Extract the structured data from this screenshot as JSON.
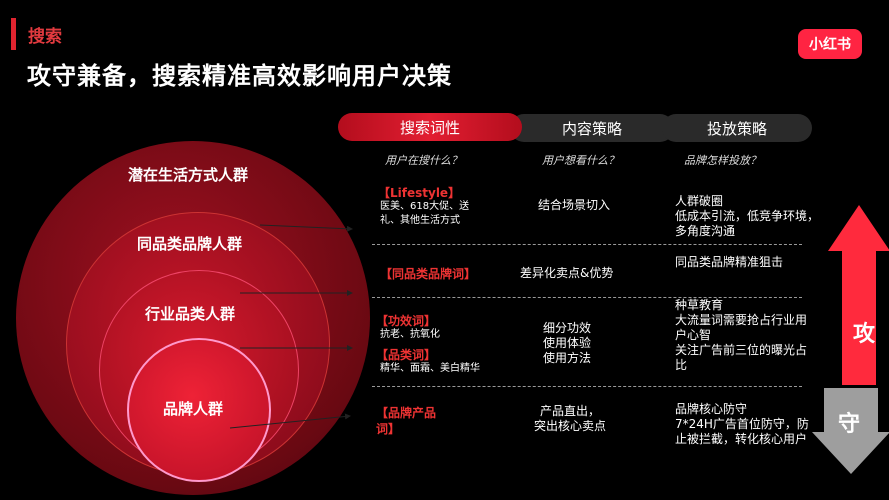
{
  "header": {
    "section": "搜索",
    "title": "攻守兼备，搜索精准高效影响用户决策",
    "logo": "小红书"
  },
  "circles": [
    {
      "label": "潜在生活方式人群"
    },
    {
      "label": "同品类品牌人群"
    },
    {
      "label": "行业品类人群"
    },
    {
      "label": "品牌人群"
    }
  ],
  "columns": [
    {
      "tab": "搜索词性",
      "question": "用户在搜什么？"
    },
    {
      "tab": "内容策略",
      "question": "用户想看什么？"
    },
    {
      "tab": "投放策略",
      "question": "品牌怎样投放？"
    }
  ],
  "rows": {
    "r1": {
      "keyword": "【Lifestyle】",
      "keyword_desc": "医美、618大促、送\n礼、其他生活方式",
      "content": "结合场景切入",
      "strategy": "人群破圈\n低成本引流，低竞争环境，\n多角度沟通"
    },
    "r2": {
      "keyword": "【同品类品牌词】",
      "content": "差异化卖点&优势",
      "strategy": "同品类品牌精准狙击"
    },
    "r3": {
      "keyword_a": "【功效词】",
      "desc_a": "抗老、抗氧化",
      "keyword_b": "【品类词】",
      "desc_b": "精华、面霜、美白精华",
      "content": "细分功效\n使用体验\n使用方法",
      "strategy": "种草教育\n大流量词需要抢占行业用\n户心智\n关注广告前三位的曝光占\n比"
    },
    "r4": {
      "keyword": "【品牌产品\n词】",
      "content": "产品直出，\n突出核心卖点",
      "strategy": "品牌核心防守\n7*24H广告首位防守，防\n止被拦截，转化核心用户"
    }
  },
  "arrows": {
    "attack": "攻",
    "defend": "守"
  },
  "colors": {
    "accent": "#e0242f",
    "brand": "#ff2442",
    "background": "#000000"
  }
}
